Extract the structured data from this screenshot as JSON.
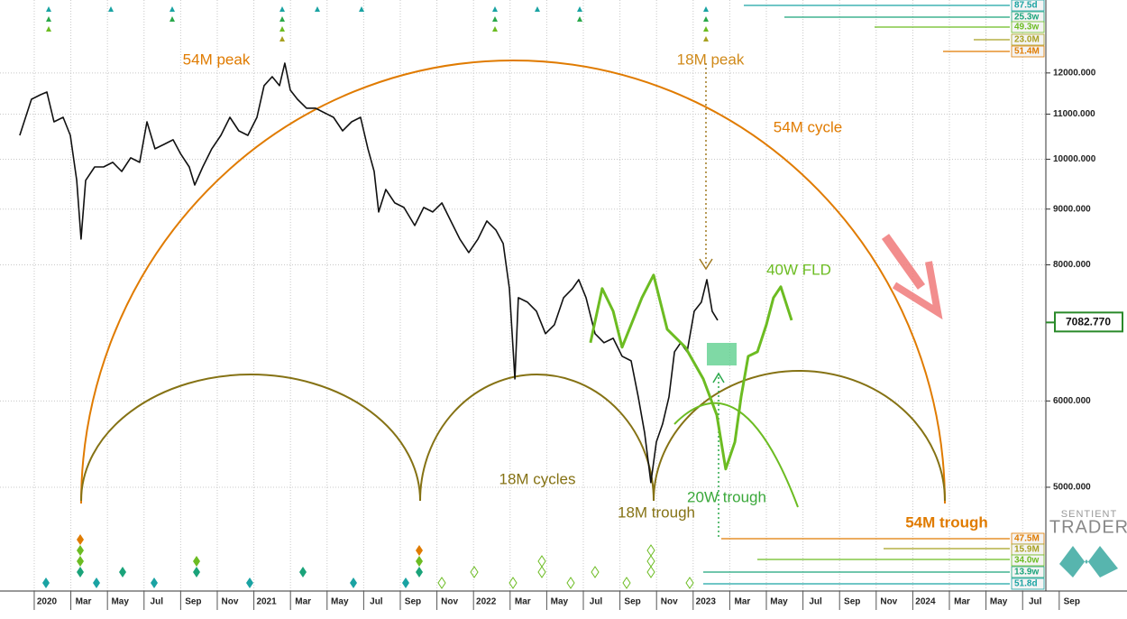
{
  "chart_data": {
    "type": "line",
    "log_scale": true,
    "grid": true,
    "xlim": [
      -1.87,
      60.5
    ],
    "ylim": [
      4000,
      14000
    ],
    "yticks": [
      {
        "value": 5000,
        "label": "5000.000"
      },
      {
        "value": 6000,
        "label": "6000.000"
      },
      {
        "value": 8000,
        "label": "8000.000"
      },
      {
        "value": 9000,
        "label": "9000.000"
      },
      {
        "value": 10000,
        "label": "10000.000"
      },
      {
        "value": 11000,
        "label": "11000.000"
      },
      {
        "value": 12000,
        "label": "12000.000"
      }
    ],
    "xticks": [
      {
        "value": 0,
        "label": "2020"
      },
      {
        "value": 2,
        "label": "Mar"
      },
      {
        "value": 4,
        "label": "May"
      },
      {
        "value": 6,
        "label": "Jul"
      },
      {
        "value": 8,
        "label": "Sep"
      },
      {
        "value": 10,
        "label": "Nov"
      },
      {
        "value": 12,
        "label": "2021"
      },
      {
        "value": 14,
        "label": "Mar"
      },
      {
        "value": 16,
        "label": "May"
      },
      {
        "value": 18,
        "label": "Jul"
      },
      {
        "value": 20,
        "label": "Sep"
      },
      {
        "value": 22,
        "label": "Nov"
      },
      {
        "value": 24,
        "label": "2022"
      },
      {
        "value": 26,
        "label": "Mar"
      },
      {
        "value": 28,
        "label": "May"
      },
      {
        "value": 30,
        "label": "Jul"
      },
      {
        "value": 32,
        "label": "Sep"
      },
      {
        "value": 34,
        "label": "Nov"
      },
      {
        "value": 36,
        "label": "2023"
      },
      {
        "value": 38,
        "label": "Mar"
      },
      {
        "value": 40,
        "label": "May"
      },
      {
        "value": 42,
        "label": "Jul"
      },
      {
        "value": 44,
        "label": "Sep"
      },
      {
        "value": 46,
        "label": "Nov"
      },
      {
        "value": 48,
        "label": "2024"
      },
      {
        "value": 50,
        "label": "Mar"
      },
      {
        "value": 52,
        "label": "May"
      },
      {
        "value": 54,
        "label": "Jul"
      },
      {
        "value": 56,
        "label": "Sep"
      }
    ],
    "series": [
      {
        "color": "#111111",
        "x": [
          -0.79,
          -0.15,
          0.34,
          0.69,
          1.08,
          1.58,
          1.97,
          2.32,
          2.56,
          2.81,
          3.3,
          3.79,
          4.29,
          4.78,
          5.27,
          5.76,
          6.16,
          6.6,
          7.09,
          7.59,
          7.98,
          8.47,
          8.77,
          9.21,
          9.7,
          10.2,
          10.69,
          11.18,
          11.67,
          12.17,
          12.56,
          13.0,
          13.4,
          13.69,
          13.99,
          14.38,
          14.88,
          15.37,
          15.86,
          16.35,
          16.85,
          17.34,
          17.83,
          18.23,
          18.57,
          18.82,
          19.21,
          19.7,
          20.2,
          20.79,
          21.28,
          21.77,
          22.27,
          22.76,
          23.25,
          23.74,
          24.24,
          24.73,
          25.22,
          25.62,
          25.96,
          26.26,
          26.45,
          26.95,
          27.44,
          27.93,
          28.42,
          28.92,
          29.41,
          29.75,
          30.15,
          30.64,
          31.13,
          31.63,
          32.12,
          32.61,
          33.0,
          33.35,
          33.69,
          33.99,
          34.33,
          34.68,
          34.98,
          35.32,
          35.67,
          36.06,
          36.45,
          36.75,
          37.04,
          37.34
        ],
        "values": [
          10518,
          11351,
          11460,
          11526,
          10823,
          10927,
          10518,
          9562,
          8448,
          9562,
          9839,
          9839,
          9934,
          9746,
          10029,
          9934,
          10823,
          10222,
          10319,
          10419,
          10126,
          9839,
          9471,
          9839,
          10222,
          10518,
          10927,
          10619,
          10518,
          10927,
          11682,
          11906,
          11682,
          12251,
          11571,
          11351,
          11138,
          11138,
          11031,
          10927,
          10619,
          10823,
          10927,
          10222,
          9746,
          8946,
          9381,
          9117,
          9031,
          8694,
          9031,
          8946,
          9117,
          8777,
          8448,
          8210,
          8448,
          8777,
          8610,
          8368,
          7608,
          6287,
          7463,
          7393,
          7253,
          6916,
          7049,
          7463,
          7608,
          7753,
          7463,
          6916,
          6786,
          6850,
          6594,
          6531,
          6052,
          5608,
          5050,
          5502,
          5715,
          6052,
          6657,
          6786,
          6657,
          7253,
          7393,
          7753,
          7253,
          7116
        ]
      },
      {
        "name": "40W FLD",
        "color": "#6cbc22",
        "x": [
          30.39,
          31.03,
          31.63,
          32.12,
          32.61,
          33.2,
          33.84,
          34.58,
          35.57,
          36.55,
          37.29,
          37.78,
          38.28,
          38.62,
          39.01,
          39.51,
          40.0,
          40.39,
          40.79,
          41.38
        ],
        "values": [
          6786,
          7608,
          7253,
          6721,
          7049,
          7463,
          7829,
          6982,
          6721,
          6287,
          5826,
          5196,
          5502,
          6052,
          6594,
          6657,
          7049,
          7463,
          7637,
          7116
        ]
      }
    ],
    "current_price": {
      "value": 7082.77,
      "label": "7082.770"
    },
    "annotations": [
      {
        "text": "54M peak",
        "color": "#e07b00"
      },
      {
        "text": "18M peak",
        "color": "#d08a1a"
      },
      {
        "text": "54M cycle",
        "color": "#e07b00"
      },
      {
        "text": "18M cycles",
        "color": "#857214"
      },
      {
        "text": "18M trough",
        "color": "#857214"
      },
      {
        "text": "20W trough",
        "color": "#3aa83a"
      },
      {
        "text": "54M trough",
        "color": "#e07b00"
      }
    ],
    "cycle_labels_top": [
      {
        "text": "87.5d",
        "color": "#1aa3a3"
      },
      {
        "text": "25.3w",
        "color": "#1aa37a"
      },
      {
        "text": "49.3w",
        "color": "#6cbc22"
      },
      {
        "text": "23.0M",
        "color": "#a8a020"
      },
      {
        "text": "51.4M",
        "color": "#e07b00"
      }
    ],
    "cycle_labels_bottom": [
      {
        "text": "47.5M",
        "color": "#e07b00"
      },
      {
        "text": "15.9M",
        "color": "#a8a020"
      },
      {
        "text": "34.0w",
        "color": "#6cbc22"
      },
      {
        "text": "13.9w",
        "color": "#1aa37a"
      },
      {
        "text": "51.8d",
        "color": "#1aa3a3"
      }
    ],
    "logo": {
      "line1": "SENTIENT",
      "line2": "TRADER"
    }
  }
}
